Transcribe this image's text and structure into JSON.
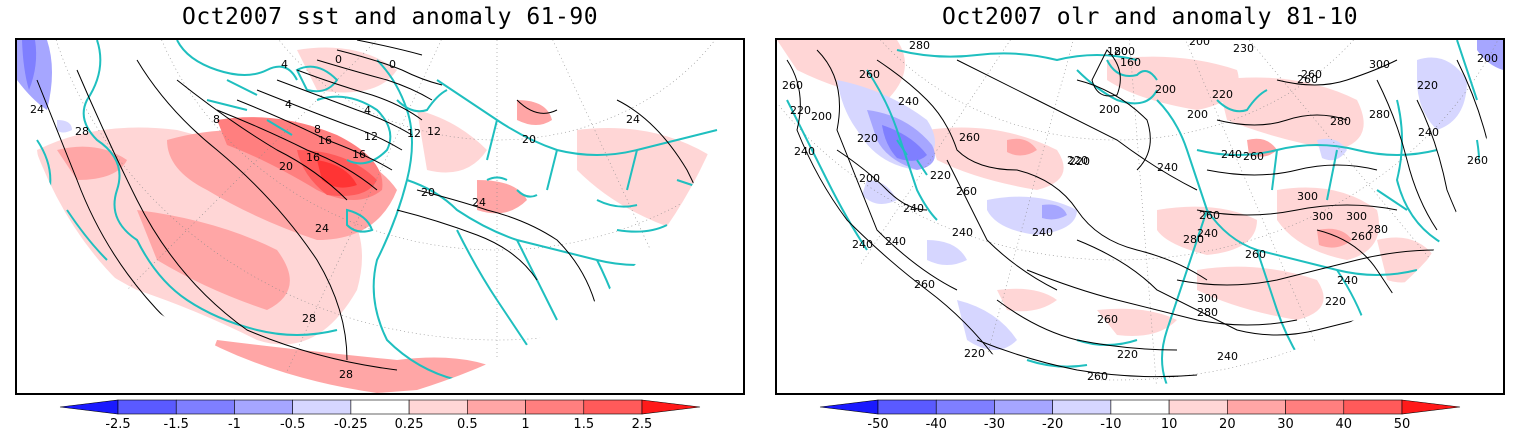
{
  "panels": [
    {
      "title": "Oct2007 sst and anomaly 61-90",
      "contour_labels": [
        "24",
        "28",
        "20",
        "16",
        "12",
        "8",
        "4",
        "0",
        "4",
        "8",
        "12",
        "16",
        "20",
        "24",
        "20",
        "24",
        "28",
        "28",
        "4",
        "0",
        "12",
        "16",
        "24"
      ],
      "colorbar": {
        "labels": [
          "-2.5",
          "-1.5",
          "-1",
          "-0.5",
          "-0.25",
          "0.25",
          "0.5",
          "1",
          "1.5",
          "2.5"
        ],
        "colors": [
          "#1a1aff",
          "#5a5aff",
          "#7f7fff",
          "#a6a6ff",
          "#d6d6ff",
          "#ffffff",
          "#ffd6d6",
          "#ffa6a6",
          "#ff7f7f",
          "#ff5a5a",
          "#ff1a1a"
        ]
      }
    },
    {
      "title": "Oct2007 olr and anomaly 81-10",
      "contour_labels": [
        "280",
        "260",
        "260",
        "240",
        "220",
        "200",
        "220",
        "240",
        "200",
        "220",
        "240",
        "260",
        "220",
        "240",
        "240",
        "240",
        "260",
        "200",
        "180",
        "160",
        "200",
        "200",
        "200",
        "220",
        "200",
        "220",
        "240",
        "260",
        "280",
        "260",
        "230",
        "260",
        "300",
        "220",
        "200",
        "240",
        "260",
        "280",
        "300",
        "240",
        "260",
        "300",
        "300",
        "260",
        "280",
        "280",
        "240",
        "220",
        "220",
        "240",
        "260",
        "240",
        "260",
        "260",
        "240",
        "220",
        "280",
        "300",
        "260"
      ],
      "colorbar": {
        "labels": [
          "-50",
          "-40",
          "-30",
          "-20",
          "-10",
          "10",
          "20",
          "30",
          "40",
          "50"
        ],
        "colors": [
          "#1a1aff",
          "#5a5aff",
          "#7f7fff",
          "#a6a6ff",
          "#d6d6ff",
          "#ffffff",
          "#ffd6d6",
          "#ffa6a6",
          "#ff7f7f",
          "#ff5a5a",
          "#ff1a1a"
        ]
      }
    }
  ]
}
